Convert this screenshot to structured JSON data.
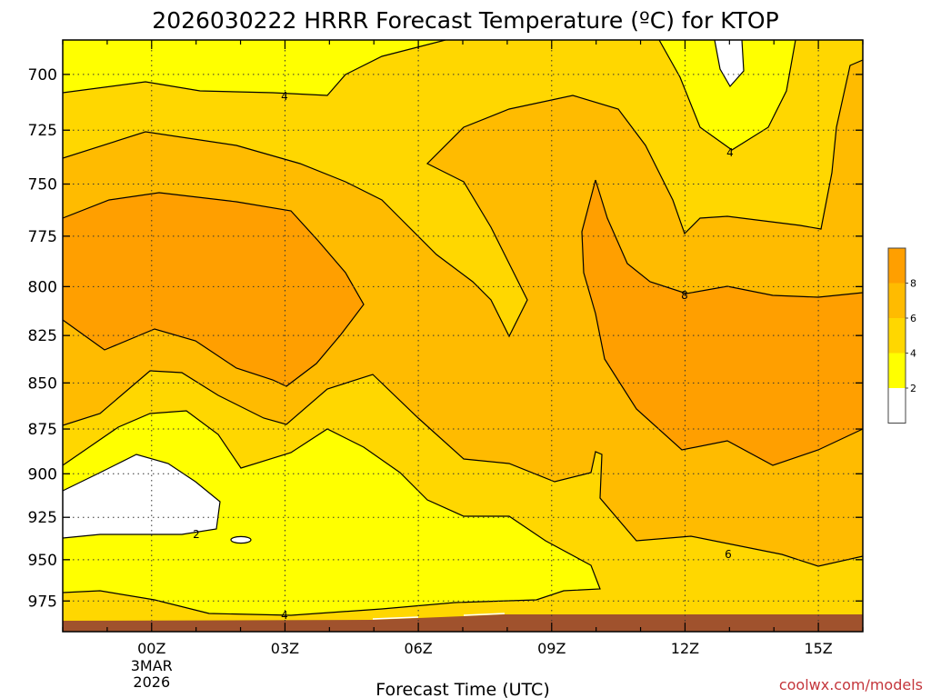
{
  "chart_data": {
    "type": "contour",
    "title": "2026030222 HRRR Forecast Temperature (ºC) for KTOP",
    "xlabel": "Forecast Time (UTC)",
    "ylabel": "",
    "y_axis": {
      "ticks": [
        700,
        725,
        750,
        775,
        800,
        825,
        850,
        875,
        900,
        925,
        950,
        975
      ],
      "range_hPa": [
        685,
        994
      ],
      "inverted": true
    },
    "x_axis": {
      "ticks": [
        "00Z",
        "03Z",
        "06Z",
        "09Z",
        "12Z",
        "15Z"
      ],
      "range_hours_from_00Z": [
        -2,
        16
      ],
      "first_tick_date_lines": [
        "3MAR",
        "2026"
      ]
    },
    "contour_interval_C": 2,
    "contour_labels": [
      "4",
      "4",
      "2",
      "8",
      "6",
      "4"
    ],
    "colorbar": {
      "labels": [
        "2",
        "4",
        "6",
        "8"
      ],
      "colors": [
        "#ffffff",
        "#ffff00",
        "#ffd700",
        "#ffbb00",
        "#ff9f00"
      ]
    },
    "ground_color": "#a0522d",
    "grid": true,
    "credit": "coolwx.com/models"
  }
}
